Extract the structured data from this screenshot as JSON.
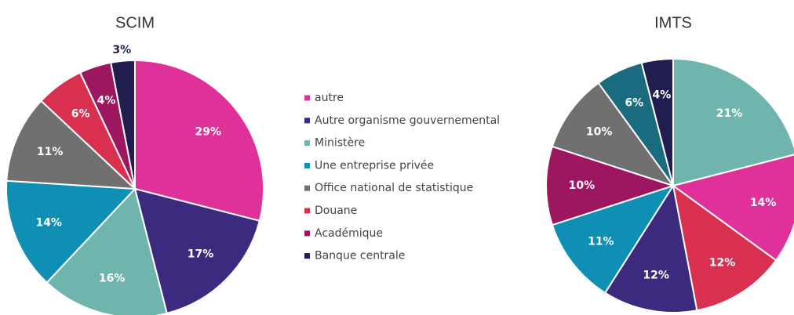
{
  "legend": [
    {
      "name": "autre",
      "color": "#e0309a"
    },
    {
      "name": "Autre organisme gouvernemental",
      "color": "#3b2a7e"
    },
    {
      "name": "Ministère",
      "color": "#6fb5ad"
    },
    {
      "name": "Une entreprise privée",
      "color": "#0f8fb3"
    },
    {
      "name": "Office national de statistique",
      "color": "#707070"
    },
    {
      "name": "Douane",
      "color": "#d9304f"
    },
    {
      "name": "Académique",
      "color": "#9c1660"
    },
    {
      "name": "Banque centrale",
      "color": "#211e4f"
    }
  ],
  "chart_data": [
    {
      "type": "pie",
      "title": "SCIM",
      "values": [
        29,
        17,
        16,
        14,
        11,
        6,
        4,
        3
      ],
      "value_labels": [
        "29%",
        "17%",
        "16%",
        "14%",
        "11%",
        "6%",
        "4%",
        "3%"
      ],
      "colors": [
        "#e0309a",
        "#3b2a7e",
        "#6fb5ad",
        "#0f8fb3",
        "#707070",
        "#d9304f",
        "#9c1660",
        "#211e4f"
      ]
    },
    {
      "type": "pie",
      "title": "IMTS",
      "values": [
        21,
        14,
        12,
        12,
        11,
        10,
        10,
        6,
        4
      ],
      "value_labels": [
        "21%",
        "14%",
        "12%",
        "12%",
        "11%",
        "10%",
        "10%",
        "6%",
        "4%"
      ],
      "colors": [
        "#6fb5ad",
        "#e0309a",
        "#d9304f",
        "#3b2a7e",
        "#0f8fb3",
        "#9c1660",
        "#707070",
        "#1a6b80",
        "#211e4f"
      ]
    }
  ]
}
